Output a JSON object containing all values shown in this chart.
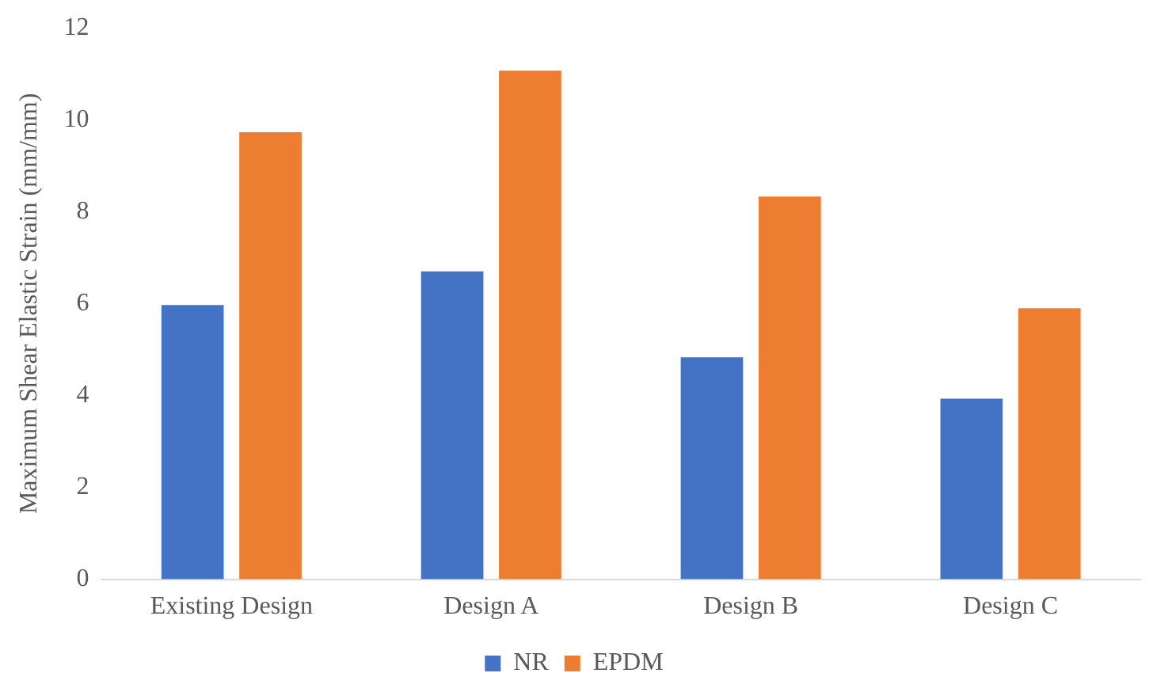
{
  "chart_data": {
    "type": "bar",
    "ylabel": "Maximum Shear Elastic Strain (mm/mm)",
    "categories": [
      "Existing Design",
      "Design A",
      "Design B",
      "Design C"
    ],
    "series": [
      {
        "name": "NR",
        "color": "#4472c4",
        "values": [
          5.97,
          6.7,
          4.83,
          3.93
        ]
      },
      {
        "name": "EPDM",
        "color": "#ed7d31",
        "values": [
          9.73,
          11.07,
          8.33,
          5.9
        ]
      }
    ],
    "ylim": [
      0,
      12
    ],
    "yticks": [
      0,
      2,
      4,
      6,
      8,
      10,
      12
    ],
    "grid": false,
    "legend": "bottom"
  }
}
